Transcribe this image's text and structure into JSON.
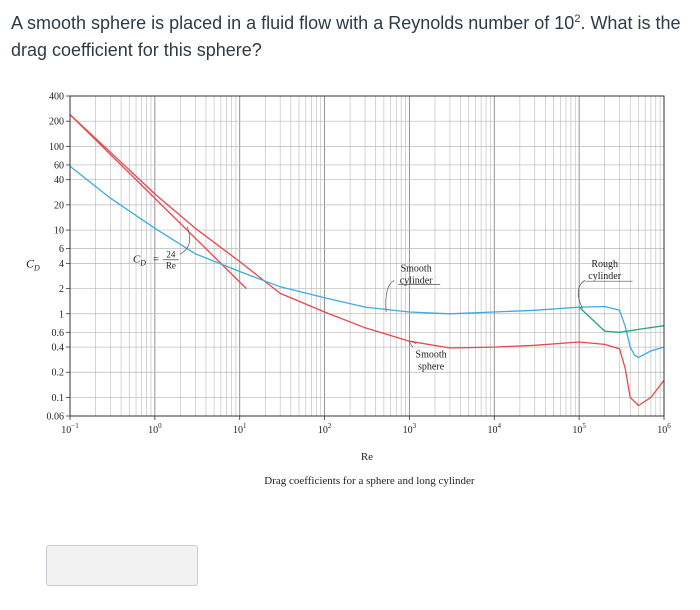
{
  "question": {
    "text_before": "A smooth sphere is placed in a fluid flow with a Reynolds number of 10",
    "exponent": "2",
    "text_after": ". What is the drag coefficient for this sphere?"
  },
  "answer_input": {
    "value": ""
  },
  "chart_data": {
    "type": "line",
    "xscale": "log",
    "yscale": "log",
    "xlabel": "Re",
    "ylabel": "C",
    "ylabel_sub": "D",
    "caption": "Drag coefficients for a sphere and long cylinder",
    "xlim": [
      0.1,
      1000000
    ],
    "ylim": [
      0.06,
      400
    ],
    "grid": true,
    "x_ticks": [
      {
        "value": 0.1,
        "base": "10",
        "exp": "−1"
      },
      {
        "value": 1,
        "base": "10",
        "exp": "0"
      },
      {
        "value": 10,
        "base": "10",
        "exp": "1"
      },
      {
        "value": 100,
        "base": "10",
        "exp": "2"
      },
      {
        "value": 1000,
        "base": "10",
        "exp": "3"
      },
      {
        "value": 10000,
        "base": "10",
        "exp": "4"
      },
      {
        "value": 100000,
        "base": "10",
        "exp": "5"
      },
      {
        "value": 1000000,
        "base": "10",
        "exp": "6"
      }
    ],
    "y_ticks": [
      {
        "value": 400,
        "label": "400"
      },
      {
        "value": 200,
        "label": "200"
      },
      {
        "value": 100,
        "label": "100"
      },
      {
        "value": 60,
        "label": "60"
      },
      {
        "value": 40,
        "label": "40"
      },
      {
        "value": 20,
        "label": "20"
      },
      {
        "value": 10,
        "label": "10"
      },
      {
        "value": 6,
        "label": "6"
      },
      {
        "value": 4,
        "label": "4"
      },
      {
        "value": 2,
        "label": "2"
      },
      {
        "value": 1,
        "label": "1"
      },
      {
        "value": 0.6,
        "label": "0.6"
      },
      {
        "value": 0.4,
        "label": "0.4"
      },
      {
        "value": 0.2,
        "label": "0.2"
      },
      {
        "value": 0.1,
        "label": "0.1"
      },
      {
        "value": 0.06,
        "label": "0.06"
      }
    ],
    "series": [
      {
        "color": "#e8474f",
        "x": [
          0.1,
          0.3,
          1,
          3,
          10,
          30,
          100,
          300,
          1000,
          3000,
          10000,
          30000,
          100000,
          200000,
          300000,
          350000,
          400000,
          500000,
          700000,
          1000000
        ],
        "y": [
          240,
          85,
          27,
          10.5,
          4.2,
          1.75,
          1.05,
          0.68,
          0.47,
          0.39,
          0.4,
          0.42,
          0.46,
          0.43,
          0.38,
          0.22,
          0.1,
          0.08,
          0.1,
          0.16
        ]
      },
      {
        "color": "#e8474f",
        "x": [
          0.1,
          12
        ],
        "y": [
          240,
          2
        ]
      },
      {
        "color": "#3aace0",
        "x": [
          0.1,
          0.3,
          1,
          3,
          10,
          30,
          100,
          300,
          1000,
          3000,
          10000,
          30000,
          100000,
          200000,
          300000,
          350000,
          400000,
          450000,
          500000,
          700000,
          1000000
        ],
        "y": [
          58,
          24,
          10.5,
          5.2,
          3.2,
          2.1,
          1.55,
          1.2,
          1.05,
          1.0,
          1.05,
          1.1,
          1.2,
          1.22,
          1.1,
          0.7,
          0.4,
          0.32,
          0.3,
          0.36,
          0.4
        ]
      },
      {
        "color": "#2ca47a",
        "x": [
          100000,
          200000,
          300000,
          500000,
          1000000
        ],
        "y": [
          1.2,
          0.62,
          0.6,
          0.65,
          0.72
        ]
      }
    ],
    "annotations": [
      {
        "id": "stokes-formula",
        "lhs": "C",
        "lhs_sub": "D",
        "eq": "=",
        "num": "24",
        "den": "Re",
        "x": 0.55,
        "y": 4.6
      },
      {
        "id": "smooth-cylinder",
        "lines": [
          "Smooth",
          "cylinder"
        ],
        "x": 1200,
        "y": 3.2
      },
      {
        "id": "smooth-sphere",
        "lines": [
          "Smooth",
          "sphere"
        ],
        "x": 1800,
        "y": 0.3
      },
      {
        "id": "rough-cylinder",
        "lines": [
          "Rough",
          "cylinder"
        ],
        "x": 200000,
        "y": 3.6
      }
    ]
  }
}
